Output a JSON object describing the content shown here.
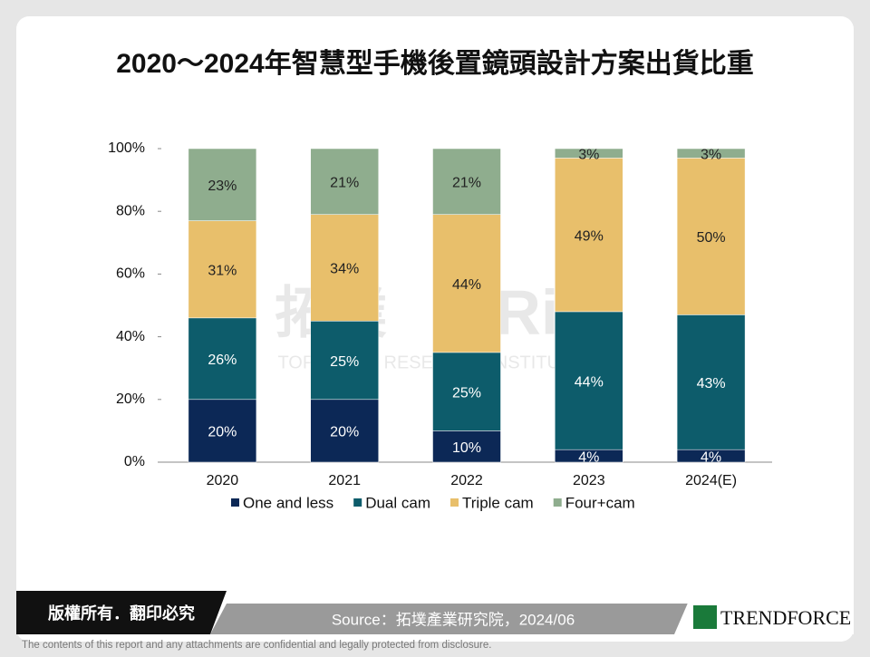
{
  "chart_data": {
    "type": "stacked_bar",
    "title": "2020～2024年智慧型手機後置鏡頭設計方案出貨比重",
    "categories": [
      "2020",
      "2021",
      "2022",
      "2023",
      "2024(E)"
    ],
    "series": [
      {
        "name": "One and less",
        "color": "#0c2856",
        "values": [
          20,
          20,
          10,
          4,
          4
        ],
        "value_labels": [
          "20%",
          "20%",
          "10%",
          "4%",
          "4%"
        ]
      },
      {
        "name": "Dual cam",
        "color": "#0d5c6b",
        "values": [
          26,
          25,
          25,
          44,
          43
        ],
        "value_labels": [
          "26%",
          "25%",
          "25%",
          "44%",
          "43%"
        ]
      },
      {
        "name": "Triple cam",
        "color": "#e8bf6b",
        "values": [
          31,
          34,
          44,
          49,
          50
        ],
        "value_labels": [
          "31%",
          "34%",
          "44%",
          "49%",
          "50%"
        ]
      },
      {
        "name": "Four+cam",
        "color": "#8fad8e",
        "values": [
          23,
          21,
          21,
          3,
          3
        ],
        "value_labels": [
          "23%",
          "21%",
          "21%",
          "3%",
          "3%"
        ]
      }
    ],
    "ylim": [
      0,
      100
    ],
    "yticks": [
      {
        "value": 0,
        "label": "0%"
      },
      {
        "value": 20,
        "label": "20%"
      },
      {
        "value": 40,
        "label": "40%"
      },
      {
        "value": 60,
        "label": "60%"
      },
      {
        "value": 80,
        "label": "80%"
      },
      {
        "value": 100,
        "label": "100%"
      }
    ],
    "legend": "bottom"
  },
  "watermark": {
    "logo": "拓墣",
    "mark": "TRi",
    "org": "TOPOLOGY RESEARCH INSTITUTE"
  },
  "footer": {
    "copyright": "版權所有．翻印必究",
    "source": "Source：拓墣產業研究院，2024/06",
    "brand": "TRENDFORCE",
    "disclaimer": "The contents of this report and any attachments are confidential and legally protected from disclosure."
  }
}
